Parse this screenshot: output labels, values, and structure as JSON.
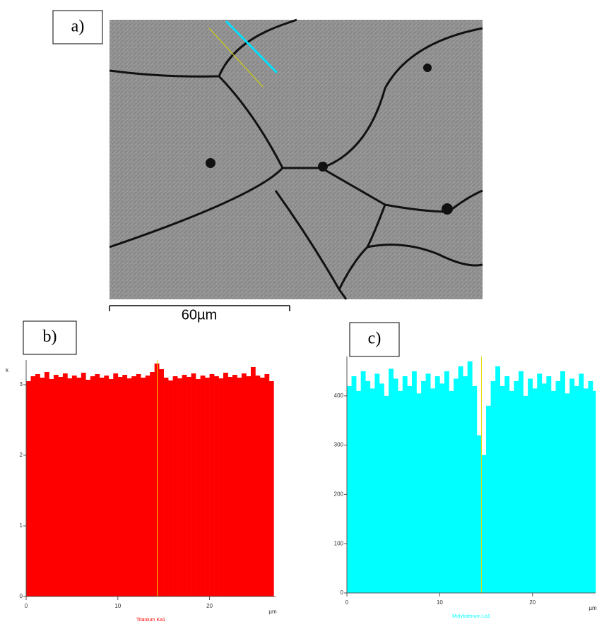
{
  "image": {
    "label": "a)",
    "scale_bar": "60µm"
  },
  "chart_data": [
    {
      "type": "bar",
      "label": "b)",
      "y_unit_label": "k",
      "x_label": "µm",
      "x": [
        0,
        0.5,
        1,
        1.5,
        2,
        2.5,
        3,
        3.5,
        4,
        4.5,
        5,
        5.5,
        6,
        6.5,
        7,
        7.5,
        8,
        8.5,
        9,
        9.5,
        10,
        10.5,
        11,
        11.5,
        12,
        12.5,
        13,
        13.5,
        14,
        14.5,
        15,
        15.5,
        16,
        16.5,
        17,
        17.5,
        18,
        18.5,
        19,
        19.5,
        20,
        20.5,
        21,
        21.5,
        22,
        22.5,
        23,
        23.5,
        24,
        24.5,
        25,
        25.5,
        26,
        26.5
      ],
      "series": [
        {
          "name": "Titanium Ka1",
          "color": "#ff0000",
          "values": [
            3.05,
            3.12,
            3.15,
            3.1,
            3.18,
            3.08,
            3.14,
            3.11,
            3.16,
            3.09,
            3.13,
            3.1,
            3.17,
            3.07,
            3.12,
            3.15,
            3.1,
            3.13,
            3.08,
            3.16,
            3.11,
            3.14,
            3.09,
            3.12,
            3.15,
            3.1,
            3.13,
            3.18,
            3.3,
            3.22,
            3.1,
            3.06,
            3.12,
            3.09,
            3.14,
            3.11,
            3.16,
            3.08,
            3.13,
            3.1,
            3.15,
            3.12,
            3.09,
            3.17,
            3.11,
            3.14,
            3.1,
            3.16,
            3.12,
            3.25,
            3.13,
            3.1,
            3.15,
            3.05
          ]
        }
      ],
      "xlim": [
        0,
        27.2
      ],
      "ylim": [
        0,
        3.35
      ],
      "xticks": [
        0,
        10,
        20
      ],
      "yticks": [
        0,
        1,
        2,
        3
      ],
      "cursor": {
        "x": 14.3,
        "color": "#e8d800"
      }
    },
    {
      "type": "bar",
      "label": "c)",
      "x_label": "µm",
      "x": [
        0,
        0.5,
        1,
        1.5,
        2,
        2.5,
        3,
        3.5,
        4,
        4.5,
        5,
        5.5,
        6,
        6.5,
        7,
        7.5,
        8,
        8.5,
        9,
        9.5,
        10,
        10.5,
        11,
        11.5,
        12,
        12.5,
        13,
        13.5,
        14,
        14.5,
        15,
        15.5,
        16,
        16.5,
        17,
        17.5,
        18,
        18.5,
        19,
        19.5,
        20,
        20.5,
        21,
        21.5,
        22,
        22.5,
        23,
        23.5,
        24,
        24.5,
        25,
        25.5,
        26,
        26.5
      ],
      "series": [
        {
          "name": "Molybdenum La1",
          "color": "#00ffff",
          "values": [
            420,
            440,
            410,
            450,
            430,
            415,
            445,
            425,
            400,
            455,
            435,
            410,
            440,
            420,
            450,
            405,
            430,
            445,
            415,
            440,
            425,
            450,
            410,
            435,
            460,
            440,
            470,
            420,
            320,
            280,
            380,
            430,
            460,
            420,
            440,
            410,
            430,
            450,
            400,
            435,
            415,
            445,
            425,
            440,
            410,
            430,
            450,
            405,
            435,
            420,
            445,
            415,
            430,
            410
          ]
        }
      ],
      "xlim": [
        0,
        26.8
      ],
      "ylim": [
        0,
        480
      ],
      "xticks": [
        0,
        10,
        20
      ],
      "yticks": [
        0,
        100,
        200,
        300,
        400
      ],
      "cursor": {
        "x": 14.5,
        "color": "#e8d800"
      }
    }
  ]
}
